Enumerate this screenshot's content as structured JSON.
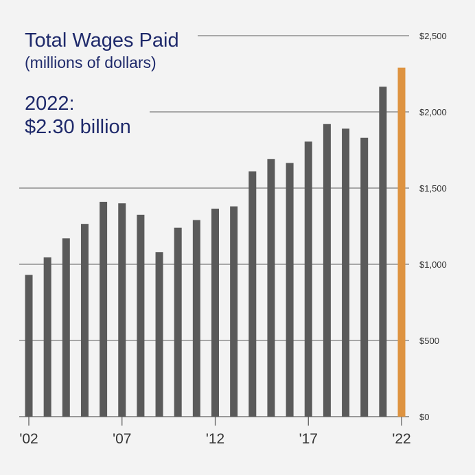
{
  "chart_data": {
    "type": "bar",
    "title": "Total Wages Paid",
    "subtitle": "(millions of dollars)",
    "highlight": {
      "year_label": "2022:",
      "value_label": "$2.30 billion"
    },
    "categories": [
      "2002",
      "2003",
      "2004",
      "2005",
      "2006",
      "2007",
      "2008",
      "2009",
      "2010",
      "2011",
      "2012",
      "2013",
      "2014",
      "2015",
      "2016",
      "2017",
      "2018",
      "2019",
      "2020",
      "2021",
      "2022"
    ],
    "values": [
      930,
      1045,
      1170,
      1265,
      1410,
      1400,
      1325,
      1080,
      1240,
      1290,
      1365,
      1380,
      1610,
      1690,
      1665,
      1805,
      1920,
      1890,
      1830,
      2165,
      2290
    ],
    "highlight_index": 20,
    "ylim": [
      0,
      2500
    ],
    "y_ticks": [
      {
        "value": 0,
        "label": "$0"
      },
      {
        "value": 500,
        "label": "$500"
      },
      {
        "value": 1000,
        "label": "$1,000"
      },
      {
        "value": 1500,
        "label": "$1,500"
      },
      {
        "value": 2000,
        "label": "$2,000"
      },
      {
        "value": 2500,
        "label": "$2,500"
      }
    ],
    "x_ticks": [
      {
        "index": 0,
        "label": "'02"
      },
      {
        "index": 5,
        "label": "'07"
      },
      {
        "index": 10,
        "label": "'12"
      },
      {
        "index": 15,
        "label": "'17"
      },
      {
        "index": 20,
        "label": "'22"
      }
    ],
    "grid": true,
    "colors": {
      "bar": "#5a5a5a",
      "highlight_bar": "#de9340",
      "grid": "#7a7a7a",
      "title": "#1f2a6b",
      "background": "#f3f3f3"
    }
  }
}
